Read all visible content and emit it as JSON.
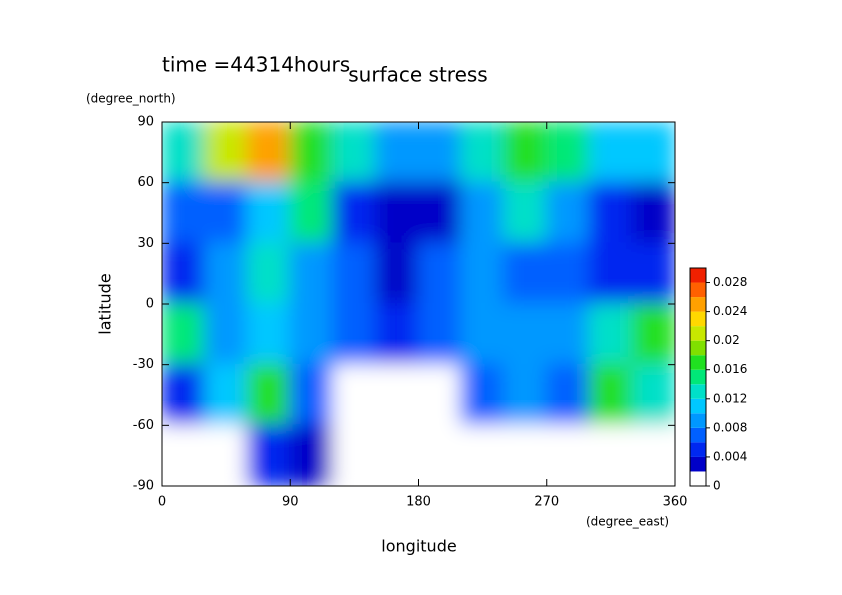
{
  "chart_data": {
    "type": "contour",
    "title": "surface stress",
    "subtitle": "time =44314hours",
    "xlabel": "longitude",
    "xunit": "(degree_east)",
    "ylabel": "latitude",
    "yunit": "(degree_north)",
    "x": [
      15,
      45,
      75,
      105,
      135,
      165,
      195,
      225,
      255,
      285,
      315,
      345
    ],
    "y": [
      75,
      45,
      15,
      -15,
      -45,
      -75
    ],
    "values": [
      [
        0.012,
        0.02,
        0.024,
        0.016,
        0.012,
        0.008,
        0.008,
        0.012,
        0.016,
        0.014,
        0.01,
        0.01
      ],
      [
        0.006,
        0.006,
        0.01,
        0.014,
        0.004,
        0.002,
        0.002,
        0.008,
        0.012,
        0.008,
        0.004,
        0.002
      ],
      [
        0.004,
        0.008,
        0.012,
        0.008,
        0.006,
        0.002,
        0.006,
        0.008,
        0.006,
        0.006,
        0.004,
        0.004
      ],
      [
        0.014,
        0.008,
        0.01,
        0.008,
        0.006,
        0.004,
        0.006,
        0.008,
        0.008,
        0.008,
        0.012,
        0.016
      ],
      [
        0.004,
        0.01,
        0.016,
        0.006,
        0,
        0,
        0,
        0.006,
        0.008,
        0.006,
        0.016,
        0.012
      ],
      [
        0,
        0,
        0.004,
        0.002,
        0,
        0,
        0,
        0,
        0,
        0,
        0,
        0
      ]
    ],
    "xlim": [
      0,
      360
    ],
    "xticks": [
      0,
      90,
      180,
      270,
      360
    ],
    "ylim": [
      -90,
      90
    ],
    "yticks": [
      -90,
      -60,
      -30,
      0,
      30,
      60,
      90
    ],
    "zlim": [
      0,
      0.03
    ],
    "zticks": [
      0,
      0.004,
      0.008,
      0.012,
      0.016,
      0.02,
      0.024,
      0.028
    ],
    "colors": [
      "#ffffff",
      "#0000c8",
      "#0028f0",
      "#0060ff",
      "#0098ff",
      "#00c8ff",
      "#00e0c8",
      "#00e878",
      "#20e020",
      "#80e000",
      "#c8e800",
      "#ffd800",
      "#ffa000",
      "#ff6000",
      "#f02000"
    ]
  }
}
